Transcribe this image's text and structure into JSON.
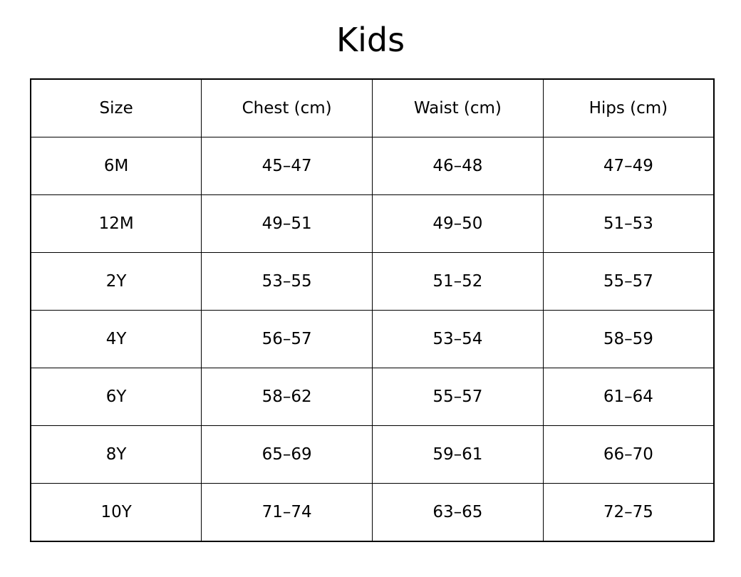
{
  "title": "Kids",
  "colors": {
    "background": "#ffffff",
    "text": "#000000",
    "border": "#000000"
  },
  "chart_data": {
    "type": "table",
    "title": "Kids",
    "columns": [
      "Size",
      "Chest (cm)",
      "Waist (cm)",
      "Hips (cm)"
    ],
    "rows": [
      [
        "6M",
        "45–47",
        "46–48",
        "47–49"
      ],
      [
        "12M",
        "49–51",
        "49–50",
        "51–53"
      ],
      [
        "2Y",
        "53–55",
        "51–52",
        "55–57"
      ],
      [
        "4Y",
        "56–57",
        "53–54",
        "58–59"
      ],
      [
        "6Y",
        "58–62",
        "55–57",
        "61–64"
      ],
      [
        "8Y",
        "65–69",
        "59–61",
        "66–70"
      ],
      [
        "10Y",
        "71–74",
        "63–65",
        "72–75"
      ]
    ]
  }
}
